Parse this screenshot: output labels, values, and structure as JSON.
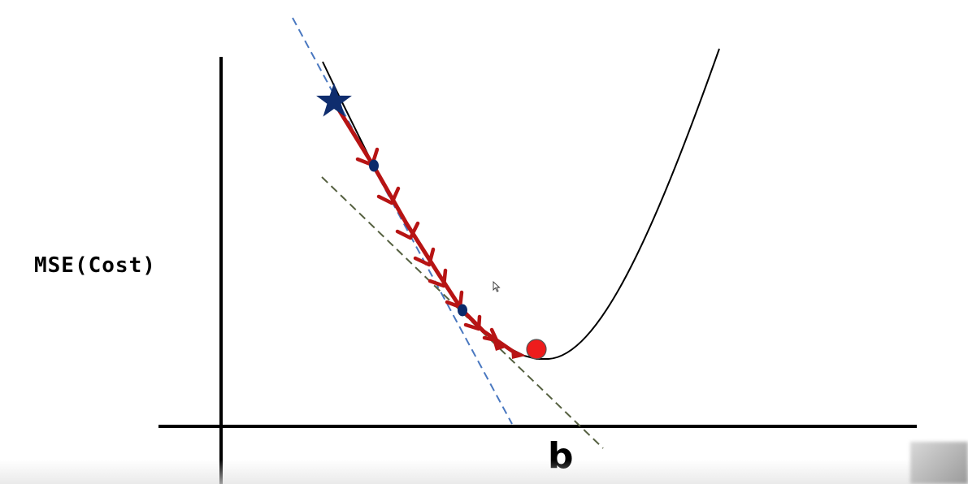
{
  "diagram": {
    "y_label": "MSE(Cost)",
    "x_label": "b",
    "colors": {
      "axes": "#000000",
      "curve": "#000000",
      "tangent_steep": "#4a78c0",
      "tangent_shallow": "#556040",
      "path": "#b71414",
      "waypoint": "#0b2a6b",
      "start_star": "#0f2d6e",
      "minimum": "#ee1c1c"
    },
    "icons": {
      "start": "star-icon",
      "minimum": "circle-icon",
      "pointer": "cursor-icon"
    }
  }
}
